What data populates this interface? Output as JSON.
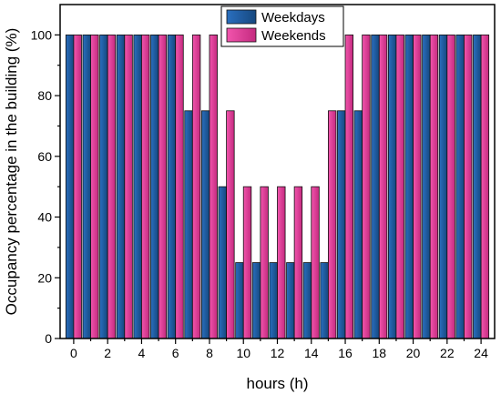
{
  "chart_data": {
    "type": "bar",
    "xlabel": "hours (h)",
    "ylabel": "Occupancy percentage in the building (%)",
    "ylim": [
      0,
      110
    ],
    "xlim": [
      -0.8,
      24.8
    ],
    "xticks": [
      "0",
      "2",
      "4",
      "6",
      "8",
      "10",
      "12",
      "14",
      "16",
      "18",
      "20",
      "22",
      "24"
    ],
    "yticks": [
      "0",
      "20",
      "40",
      "60",
      "80",
      "100"
    ],
    "categories": [
      0,
      1,
      2,
      3,
      4,
      5,
      6,
      7,
      8,
      9,
      10,
      11,
      12,
      13,
      14,
      15,
      16,
      17,
      18,
      19,
      20,
      21,
      22,
      23,
      24
    ],
    "series": [
      {
        "name": "Weekdays",
        "color": "#1f5fa8",
        "values": [
          100,
          100,
          100,
          100,
          100,
          100,
          100,
          75,
          75,
          50,
          25,
          25,
          25,
          25,
          25,
          25,
          75,
          75,
          100,
          100,
          100,
          100,
          100,
          100,
          100
        ]
      },
      {
        "name": "Weekends",
        "color": "#e8399a",
        "values": [
          100,
          100,
          100,
          100,
          100,
          100,
          100,
          100,
          100,
          75,
          50,
          50,
          50,
          50,
          50,
          75,
          100,
          100,
          100,
          100,
          100,
          100,
          100,
          100,
          100
        ]
      }
    ],
    "legend_position": "top-right",
    "grid": false
  }
}
